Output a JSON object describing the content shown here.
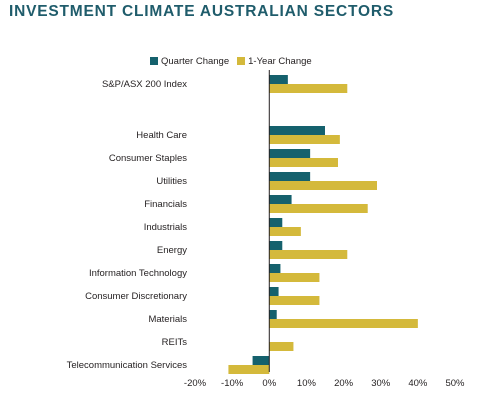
{
  "title": "INVESTMENT CLIMATE AUSTRALIAN SECTORS",
  "colors": {
    "title": "#1f5c6b",
    "quarter": "#15616d",
    "year": "#d4b93b",
    "axis": "#231f20",
    "text": "#231f20"
  },
  "legend": {
    "quarter_label": "Quarter Change",
    "year_label": "1-Year Change",
    "placement": "top"
  },
  "chart_data": {
    "type": "bar",
    "orientation": "horizontal",
    "title": "INVESTMENT CLIMATE AUSTRALIAN SECTORS",
    "xlabel": "",
    "ylabel": "",
    "xlim": [
      -20,
      50
    ],
    "x_ticks": [
      -20,
      -10,
      0,
      10,
      20,
      30,
      40,
      50
    ],
    "x_tick_labels": [
      "-20%",
      "-10%",
      "0%",
      "10%",
      "20%",
      "30%",
      "40%",
      "50%"
    ],
    "grid": false,
    "categories": [
      "S&P/ASX 200 Index",
      "Health Care",
      "Consumer Staples",
      "Utilities",
      "Financials",
      "Industrials",
      "Energy",
      "Information Technology",
      "Consumer Discretionary",
      "Materials",
      "REITs",
      "Telecommunication Services"
    ],
    "series": [
      {
        "name": "Quarter Change",
        "values": [
          5,
          15,
          11,
          11,
          6,
          3.5,
          3.5,
          3,
          2.5,
          2,
          0,
          -4.5
        ]
      },
      {
        "name": "1-Year Change",
        "values": [
          21,
          19,
          18.5,
          29,
          26.5,
          8.5,
          21,
          13.5,
          13.5,
          40,
          6.5,
          -11
        ]
      }
    ]
  }
}
